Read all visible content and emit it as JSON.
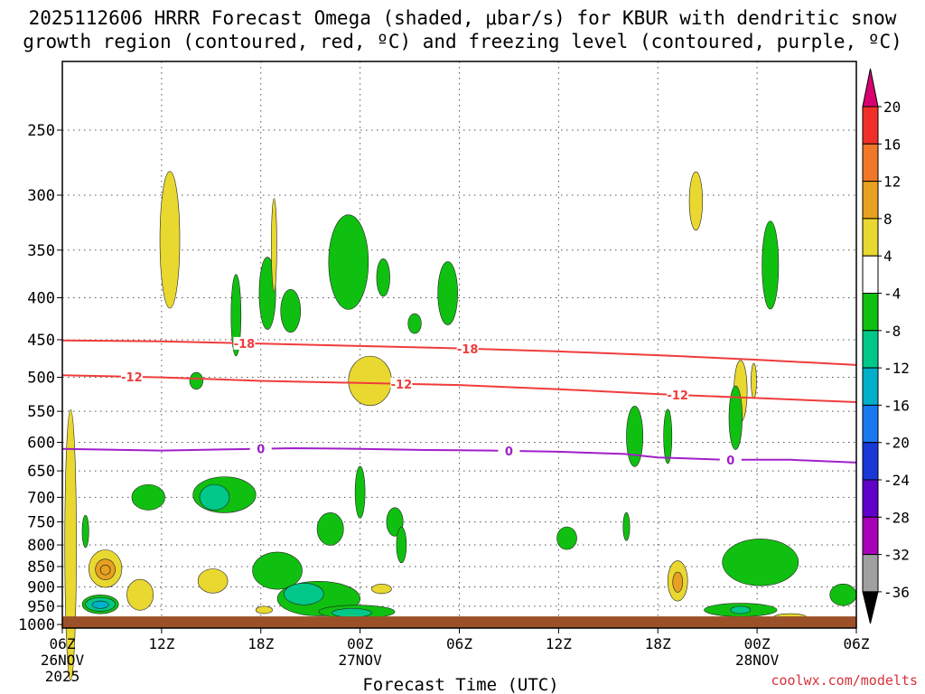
{
  "title": {
    "line1": "2025112606 HRRR Forecast Omega (shaded, μbar/s) for KBUR with dendritic snow",
    "line2": "growth region (contoured, red, ºC) and freezing level (contoured, purple, ºC)"
  },
  "credit": "coolwx.com/modelts",
  "chart_data": {
    "type": "time-height",
    "title": "2025112606 HRRR Forecast Omega (shaded, μbar/s) for KBUR with dendritic snow growth region (contoured, red, ºC) and freezing level (contoured, purple, ºC)",
    "xlabel": "Forecast Time (UTC)",
    "ylabel": "",
    "x_range_hours": [
      0,
      48
    ],
    "x_ticks": [
      {
        "h": 0,
        "label": "06Z",
        "sub": "26NOV",
        "sub2": "2025"
      },
      {
        "h": 6,
        "label": "12Z",
        "sub": "",
        "sub2": ""
      },
      {
        "h": 12,
        "label": "18Z",
        "sub": "",
        "sub2": ""
      },
      {
        "h": 18,
        "label": "00Z",
        "sub": "27NOV",
        "sub2": ""
      },
      {
        "h": 24,
        "label": "06Z",
        "sub": "",
        "sub2": ""
      },
      {
        "h": 30,
        "label": "12Z",
        "sub": "",
        "sub2": ""
      },
      {
        "h": 36,
        "label": "18Z",
        "sub": "",
        "sub2": ""
      },
      {
        "h": 42,
        "label": "00Z",
        "sub": "28NOV",
        "sub2": ""
      },
      {
        "h": 48,
        "label": "06Z",
        "sub": "",
        "sub2": ""
      }
    ],
    "y_scale": "log-pressure",
    "y_ticks": [
      "250",
      "300",
      "350",
      "400",
      "450",
      "500",
      "550",
      "600",
      "650",
      "700",
      "750",
      "800",
      "850",
      "900",
      "950",
      "1000"
    ],
    "grid": true,
    "surface_pressure_hPa": 985,
    "colorbar": {
      "levels": [
        -36,
        -32,
        -28,
        -24,
        -20,
        -16,
        -12,
        -8,
        -4,
        4,
        8,
        12,
        16,
        20
      ],
      "labels": [
        "20",
        "16",
        "12",
        "8",
        "4",
        "-4",
        "-8",
        "-12",
        "-16",
        "-20",
        "-24",
        "-28",
        "-32",
        "-36"
      ],
      "colors": [
        "#d80070",
        "#f03028",
        "#f07828",
        "#e8a020",
        "#e8d830",
        "#ffffff",
        "#10c010",
        "#00c888",
        "#00b0c8",
        "#1878f0",
        "#1838d8",
        "#6000c8",
        "#a800b8",
        "#a0a0a0",
        "#000000"
      ]
    },
    "contours": [
      {
        "name": "-18",
        "color": "#f03c3c",
        "points": [
          [
            0,
            451
          ],
          [
            6,
            452
          ],
          [
            12,
            455
          ],
          [
            18,
            458
          ],
          [
            24,
            461
          ],
          [
            30,
            465
          ],
          [
            36,
            470
          ],
          [
            42,
            476
          ],
          [
            48,
            483
          ]
        ],
        "labels_at_h": [
          11,
          24.5
        ]
      },
      {
        "name": "-12",
        "color": "#f03c3c",
        "points": [
          [
            0,
            497
          ],
          [
            6,
            500
          ],
          [
            12,
            505
          ],
          [
            18,
            508
          ],
          [
            24,
            511
          ],
          [
            30,
            517
          ],
          [
            36,
            524
          ],
          [
            42,
            530
          ],
          [
            48,
            536
          ]
        ],
        "labels_at_h": [
          4.2,
          20.5,
          37.2
        ]
      },
      {
        "name": "0",
        "color": "#a020c8",
        "points": [
          [
            0,
            611
          ],
          [
            6,
            614
          ],
          [
            10,
            612
          ],
          [
            14,
            610
          ],
          [
            18,
            611
          ],
          [
            22,
            613
          ],
          [
            26,
            614
          ],
          [
            30,
            616
          ],
          [
            34,
            620
          ],
          [
            36,
            626
          ],
          [
            40,
            630
          ],
          [
            44,
            630
          ],
          [
            48,
            635
          ]
        ],
        "labels_at_h": [
          12,
          27,
          40.4
        ]
      }
    ],
    "omega_regions": [
      {
        "value": 4,
        "h": 6.5,
        "p": 340,
        "rh": 0.6,
        "rp": 65
      },
      {
        "value": -4,
        "h": 10.5,
        "p": 420,
        "rh": 0.3,
        "rp": 48
      },
      {
        "value": -4,
        "h": 12.4,
        "p": 395,
        "rh": 0.5,
        "rp": 40
      },
      {
        "value": -4,
        "h": 13.8,
        "p": 415,
        "rh": 0.6,
        "rp": 25
      },
      {
        "value": -4,
        "h": 17.3,
        "p": 362,
        "rh": 1.2,
        "rp": 48
      },
      {
        "value": -4,
        "h": 19.4,
        "p": 378,
        "rh": 0.4,
        "rp": 20
      },
      {
        "value": -4,
        "h": 23.3,
        "p": 395,
        "rh": 0.6,
        "rp": 35
      },
      {
        "value": -4,
        "h": 21.3,
        "p": 430,
        "rh": 0.4,
        "rp": 12
      },
      {
        "value": -4,
        "h": 8.1,
        "p": 505,
        "rh": 0.4,
        "rp": 12
      },
      {
        "value": 4,
        "h": 12.8,
        "p": 345,
        "rh": 0.15,
        "rp": 45
      },
      {
        "value": 4,
        "h": 18.6,
        "p": 505,
        "rh": 1.3,
        "rp": 35
      },
      {
        "value": 4,
        "h": 38.3,
        "p": 305,
        "rh": 0.4,
        "rp": 25
      },
      {
        "value": -4,
        "h": 42.8,
        "p": 365,
        "rh": 0.5,
        "rp": 45
      },
      {
        "value": 4,
        "h": 41.0,
        "p": 520,
        "rh": 0.4,
        "rp": 45
      },
      {
        "value": 4,
        "h": 41.8,
        "p": 505,
        "rh": 0.12,
        "rp": 25
      },
      {
        "value": -4,
        "h": 40.7,
        "p": 560,
        "rh": 0.4,
        "rp": 50
      },
      {
        "value": -4,
        "h": 34.6,
        "p": 590,
        "rh": 0.5,
        "rp": 50
      },
      {
        "value": -4,
        "h": 36.6,
        "p": 590,
        "rh": 0.25,
        "rp": 45
      },
      {
        "value": -4,
        "h": 9.8,
        "p": 695,
        "rh": 1.9,
        "rp": 35
      },
      {
        "value": -8,
        "h": 9.2,
        "p": 700,
        "rh": 0.9,
        "rp": 25
      },
      {
        "value": -4,
        "h": 5.2,
        "p": 700,
        "rh": 1.0,
        "rp": 25
      },
      {
        "value": -4,
        "h": 1.4,
        "p": 770,
        "rh": 0.2,
        "rp": 35
      },
      {
        "value": -4,
        "h": 16.2,
        "p": 765,
        "rh": 0.8,
        "rp": 35
      },
      {
        "value": -4,
        "h": 18.0,
        "p": 690,
        "rh": 0.3,
        "rp": 50
      },
      {
        "value": -4,
        "h": 20.1,
        "p": 750,
        "rh": 0.5,
        "rp": 30
      },
      {
        "value": -4,
        "h": 20.5,
        "p": 800,
        "rh": 0.3,
        "rp": 40
      },
      {
        "value": -4,
        "h": 13.0,
        "p": 860,
        "rh": 1.5,
        "rp": 45
      },
      {
        "value": -4,
        "h": 30.5,
        "p": 785,
        "rh": 0.6,
        "rp": 25
      },
      {
        "value": -4,
        "h": 34.1,
        "p": 760,
        "rh": 0.2,
        "rp": 30
      },
      {
        "value": -4,
        "h": 42.2,
        "p": 840,
        "rh": 2.3,
        "rp": 55
      },
      {
        "value": -4,
        "h": 47.2,
        "p": 920,
        "rh": 0.8,
        "rp": 28
      },
      {
        "value": -4,
        "h": 41.0,
        "p": 960,
        "rh": 2.2,
        "rp": 18
      },
      {
        "value": -8,
        "h": 41.0,
        "p": 960,
        "rh": 0.6,
        "rp": 10
      },
      {
        "value": -4,
        "h": 15.5,
        "p": 930,
        "rh": 2.5,
        "rp": 45
      },
      {
        "value": -8,
        "h": 14.6,
        "p": 918,
        "rh": 1.2,
        "rp": 28
      },
      {
        "value": -4,
        "h": 17.8,
        "p": 965,
        "rh": 2.3,
        "rp": 18
      },
      {
        "value": -8,
        "h": 17.5,
        "p": 968,
        "rh": 1.2,
        "rp": 12
      },
      {
        "value": -4,
        "h": 2.3,
        "p": 945,
        "rh": 1.1,
        "rp": 25
      },
      {
        "value": -8,
        "h": 2.3,
        "p": 945,
        "rh": 0.9,
        "rp": 18
      },
      {
        "value": -12,
        "h": 2.3,
        "p": 946,
        "rh": 0.5,
        "rp": 10
      },
      {
        "value": 4,
        "h": 2.6,
        "p": 855,
        "rh": 1.0,
        "rp": 45
      },
      {
        "value": 8,
        "h": 2.6,
        "p": 857,
        "rh": 0.6,
        "rp": 25
      },
      {
        "value": 12,
        "h": 2.6,
        "p": 858,
        "rh": 0.3,
        "rp": 12
      },
      {
        "value": 4,
        "h": 4.7,
        "p": 920,
        "rh": 0.8,
        "rp": 40
      },
      {
        "value": 4,
        "h": 9.1,
        "p": 885,
        "rh": 0.9,
        "rp": 30
      },
      {
        "value": 4,
        "h": 19.3,
        "p": 905,
        "rh": 0.6,
        "rp": 12
      },
      {
        "value": 4,
        "h": 12.2,
        "p": 960,
        "rh": 0.5,
        "rp": 10
      },
      {
        "value": 4,
        "h": 37.2,
        "p": 885,
        "rh": 0.6,
        "rp": 50
      },
      {
        "value": 8,
        "h": 37.2,
        "p": 888,
        "rh": 0.3,
        "rp": 25
      },
      {
        "value": 4,
        "h": 44.0,
        "p": 980,
        "rh": 1.0,
        "rp": 10
      },
      {
        "value": 4,
        "h": 0.5,
        "p": 800,
        "rh": 0.35,
        "rp": 300
      }
    ]
  }
}
